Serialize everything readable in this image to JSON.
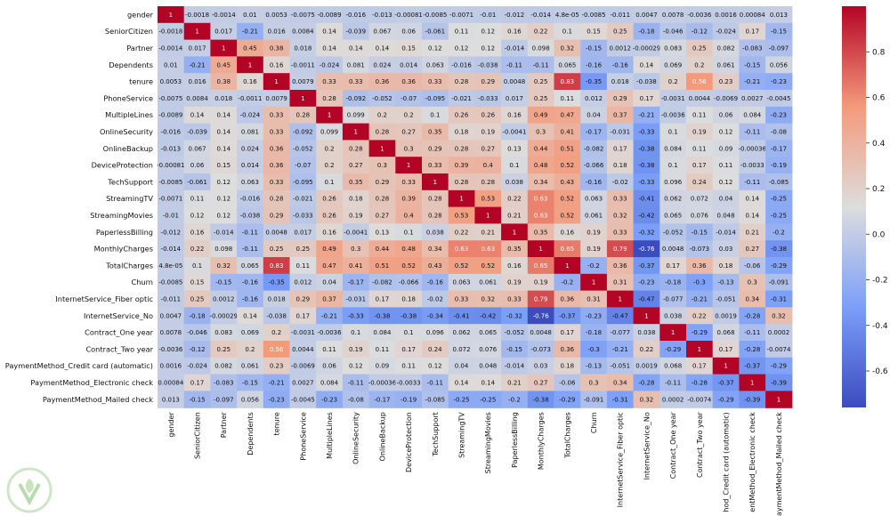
{
  "chart_data": {
    "type": "heatmap",
    "title": "",
    "xlabel": "",
    "ylabel": "",
    "labels": [
      "gender",
      "SeniorCitizen",
      "Partner",
      "Dependents",
      "tenure",
      "PhoneService",
      "MultipleLines",
      "OnlineSecurity",
      "OnlineBackup",
      "DeviceProtection",
      "TechSupport",
      "StreamingTV",
      "StreamingMovies",
      "PaperlessBilling",
      "MonthlyCharges",
      "TotalCharges",
      "Churn",
      "InternetService_Fiber optic",
      "InternetService_No",
      "Contract_One year",
      "Contract_Two year",
      "PaymentMethod_Credit card (automatic)",
      "PaymentMethod_Electronic check",
      "PaymentMethod_Mailed check"
    ],
    "x_tick_labels": [
      "gender",
      "SeniorCitizen",
      "Partner",
      "Dependents",
      "tenure",
      "PhoneService",
      "MultipleLines",
      "OnlineSecurity",
      "OnlineBackup",
      "DeviceProtection",
      "TechSupport",
      "StreamingTV",
      "StreamingMovies",
      "PaperlessBilling",
      "MonthlyCharges",
      "TotalCharges",
      "Churn",
      "InternetService_Fiber optic",
      "InternetService_No",
      "Contract_One year",
      "Contract_Two year",
      "hod_Credit card (automatic)",
      "entMethod_Electronic check",
      "aymentMethod_Mailed check"
    ],
    "cell_text": [
      [
        "1",
        "-0.0018",
        "-0.0014",
        "0.01",
        "0.0053",
        "-0.0075",
        "-0.0089",
        "-0.016",
        "-0.013",
        "-0.00081",
        "-0.0085",
        "-0.0071",
        "-0.01",
        "-0.012",
        "-0.014",
        "4.8e-05",
        "-0.0085",
        "-0.011",
        "0.0047",
        "0.0078",
        "-0.0036",
        "0.0016",
        "0.00084",
        "0.013"
      ],
      [
        "-0.0018",
        "1",
        "0.017",
        "-0.21",
        "0.016",
        "0.0084",
        "0.14",
        "-0.039",
        "0.067",
        "0.06",
        "-0.061",
        "0.11",
        "0.12",
        "0.16",
        "0.22",
        "0.1",
        "0.15",
        "0.25",
        "-0.18",
        "-0.046",
        "-0.12",
        "-0.024",
        "0.17",
        "-0.15"
      ],
      [
        "-0.0014",
        "0.017",
        "1",
        "0.45",
        "0.38",
        "0.018",
        "0.14",
        "0.14",
        "0.14",
        "0.15",
        "0.12",
        "0.12",
        "0.12",
        "-0.014",
        "0.098",
        "0.32",
        "-0.15",
        "0.0012",
        "-0.00029",
        "0.083",
        "0.25",
        "0.082",
        "-0.083",
        "-0.097"
      ],
      [
        "0.01",
        "-0.21",
        "0.45",
        "1",
        "0.16",
        "-0.0011",
        "-0.024",
        "0.081",
        "0.024",
        "0.014",
        "0.063",
        "-0.016",
        "-0.038",
        "-0.11",
        "-0.11",
        "0.065",
        "-0.16",
        "-0.16",
        "0.14",
        "0.069",
        "0.2",
        "0.061",
        "-0.15",
        "0.056"
      ],
      [
        "0.0053",
        "0.016",
        "0.38",
        "0.16",
        "1",
        "0.0079",
        "0.33",
        "0.33",
        "0.36",
        "0.36",
        "0.33",
        "0.28",
        "0.29",
        "0.0048",
        "0.25",
        "0.83",
        "-0.35",
        "0.018",
        "-0.038",
        "0.2",
        "0.56",
        "0.23",
        "-0.21",
        "-0.23"
      ],
      [
        "-0.0075",
        "0.0084",
        "0.018",
        "-0.0011",
        "0.0079",
        "1",
        "0.28",
        "-0.092",
        "-0.052",
        "-0.07",
        "-0.095",
        "-0.021",
        "-0.033",
        "0.017",
        "0.25",
        "0.11",
        "0.012",
        "0.29",
        "0.17",
        "-0.0031",
        "0.0044",
        "-0.0069",
        "0.0027",
        "-0.0045"
      ],
      [
        "-0.0089",
        "0.14",
        "0.14",
        "-0.024",
        "0.33",
        "0.28",
        "1",
        "0.099",
        "0.2",
        "0.2",
        "0.1",
        "0.26",
        "0.26",
        "0.16",
        "0.49",
        "0.47",
        "0.04",
        "0.37",
        "-0.21",
        "-0.0036",
        "0.11",
        "0.06",
        "0.084",
        "-0.23"
      ],
      [
        "-0.016",
        "-0.039",
        "0.14",
        "0.081",
        "0.33",
        "-0.092",
        "0.099",
        "1",
        "0.28",
        "0.27",
        "0.35",
        "0.18",
        "0.19",
        "-0.0041",
        "0.3",
        "0.41",
        "-0.17",
        "-0.031",
        "-0.33",
        "0.1",
        "0.19",
        "0.12",
        "-0.11",
        "-0.08"
      ],
      [
        "-0.013",
        "0.067",
        "0.14",
        "0.024",
        "0.36",
        "-0.052",
        "0.2",
        "0.28",
        "1",
        "0.3",
        "0.29",
        "0.28",
        "0.27",
        "0.13",
        "0.44",
        "0.51",
        "-0.082",
        "0.17",
        "-0.38",
        "0.084",
        "0.11",
        "0.09",
        "-0.00036",
        "-0.17"
      ],
      [
        "-0.00081",
        "0.06",
        "0.15",
        "0.014",
        "0.36",
        "-0.07",
        "0.2",
        "0.27",
        "0.3",
        "1",
        "0.33",
        "0.39",
        "0.4",
        "0.1",
        "0.48",
        "0.52",
        "-0.066",
        "0.18",
        "-0.38",
        "0.1",
        "0.17",
        "0.11",
        "-0.0033",
        "-0.19"
      ],
      [
        "-0.0085",
        "-0.061",
        "0.12",
        "0.063",
        "0.33",
        "-0.095",
        "0.1",
        "0.35",
        "0.29",
        "0.33",
        "1",
        "0.28",
        "0.28",
        "0.038",
        "0.34",
        "0.43",
        "-0.16",
        "-0.02",
        "-0.33",
        "0.096",
        "0.24",
        "0.12",
        "-0.11",
        "-0.085"
      ],
      [
        "-0.0071",
        "0.11",
        "0.12",
        "-0.016",
        "0.28",
        "-0.021",
        "0.26",
        "0.18",
        "0.28",
        "0.39",
        "0.28",
        "1",
        "0.53",
        "0.22",
        "0.63",
        "0.52",
        "0.063",
        "0.33",
        "-0.41",
        "0.062",
        "0.072",
        "0.04",
        "0.14",
        "-0.25"
      ],
      [
        "-0.01",
        "0.12",
        "0.12",
        "-0.038",
        "0.29",
        "-0.033",
        "0.26",
        "0.19",
        "0.27",
        "0.4",
        "0.28",
        "0.53",
        "1",
        "0.21",
        "0.63",
        "0.52",
        "0.061",
        "0.32",
        "-0.42",
        "0.065",
        "0.076",
        "0.048",
        "0.14",
        "-0.25"
      ],
      [
        "-0.012",
        "0.16",
        "-0.014",
        "-0.11",
        "0.0048",
        "0.017",
        "0.16",
        "-0.0041",
        "0.13",
        "0.1",
        "0.038",
        "0.22",
        "0.21",
        "1",
        "0.35",
        "0.16",
        "0.19",
        "0.33",
        "-0.32",
        "-0.052",
        "-0.15",
        "-0.014",
        "0.21",
        "-0.2"
      ],
      [
        "-0.014",
        "0.22",
        "0.098",
        "-0.11",
        "0.25",
        "0.25",
        "0.49",
        "0.3",
        "0.44",
        "0.48",
        "0.34",
        "0.63",
        "0.63",
        "0.35",
        "1",
        "0.65",
        "0.19",
        "0.79",
        "-0.76",
        "0.0048",
        "-0.073",
        "0.03",
        "0.27",
        "-0.38"
      ],
      [
        "4.8e-05",
        "0.1",
        "0.32",
        "0.065",
        "0.83",
        "0.11",
        "0.47",
        "0.41",
        "0.51",
        "0.52",
        "0.43",
        "0.52",
        "0.52",
        "0.16",
        "0.65",
        "1",
        "-0.2",
        "0.36",
        "-0.37",
        "0.17",
        "0.36",
        "0.18",
        "-0.06",
        "-0.29"
      ],
      [
        "-0.0085",
        "0.15",
        "-0.15",
        "-0.16",
        "-0.35",
        "0.012",
        "0.04",
        "-0.17",
        "-0.082",
        "-0.066",
        "-0.16",
        "0.063",
        "0.061",
        "0.19",
        "0.19",
        "-0.2",
        "1",
        "0.31",
        "-0.23",
        "-0.18",
        "-0.3",
        "-0.13",
        "0.3",
        "-0.091"
      ],
      [
        "-0.011",
        "0.25",
        "0.0012",
        "-0.16",
        "0.018",
        "0.29",
        "0.37",
        "-0.031",
        "0.17",
        "0.18",
        "-0.02",
        "0.33",
        "0.32",
        "0.33",
        "0.79",
        "0.36",
        "0.31",
        "1",
        "-0.47",
        "-0.077",
        "-0.21",
        "-0.051",
        "0.34",
        "-0.31"
      ],
      [
        "0.0047",
        "-0.18",
        "-0.00029",
        "0.14",
        "-0.038",
        "0.17",
        "-0.21",
        "-0.33",
        "-0.38",
        "-0.38",
        "-0.34",
        "-0.41",
        "-0.42",
        "-0.32",
        "-0.76",
        "-0.37",
        "-0.23",
        "-0.47",
        "1",
        "0.038",
        "0.22",
        "0.0019",
        "-0.28",
        "0.32"
      ],
      [
        "0.0078",
        "-0.046",
        "0.083",
        "0.069",
        "0.2",
        "-0.0031",
        "-0.0036",
        "0.1",
        "0.084",
        "0.1",
        "0.096",
        "0.062",
        "0.065",
        "-0.052",
        "0.0048",
        "0.17",
        "-0.18",
        "-0.077",
        "0.038",
        "1",
        "-0.29",
        "0.068",
        "-0.11",
        "0.0002"
      ],
      [
        "-0.0036",
        "-0.12",
        "0.25",
        "0.2",
        "0.56",
        "0.0044",
        "0.11",
        "0.19",
        "0.11",
        "0.17",
        "0.24",
        "0.072",
        "0.076",
        "-0.15",
        "-0.073",
        "0.36",
        "-0.3",
        "-0.21",
        "0.22",
        "-0.29",
        "1",
        "0.17",
        "-0.28",
        "-0.0074"
      ],
      [
        "0.0016",
        "-0.024",
        "0.082",
        "0.061",
        "0.23",
        "-0.0069",
        "0.06",
        "0.12",
        "0.09",
        "0.11",
        "0.12",
        "0.04",
        "0.048",
        "-0.014",
        "0.03",
        "0.18",
        "-0.13",
        "-0.051",
        "0.0019",
        "0.068",
        "0.17",
        "1",
        "-0.37",
        "-0.29"
      ],
      [
        "0.00084",
        "0.17",
        "-0.083",
        "-0.15",
        "-0.21",
        "0.0027",
        "0.084",
        "-0.11",
        "-0.00036",
        "-0.0033",
        "-0.11",
        "0.14",
        "0.14",
        "0.21",
        "0.27",
        "-0.06",
        "0.3",
        "0.34",
        "-0.28",
        "-0.11",
        "-0.28",
        "-0.37",
        "1",
        "-0.39"
      ],
      [
        "0.013",
        "-0.15",
        "-0.097",
        "0.056",
        "-0.23",
        "-0.0045",
        "-0.23",
        "-0.08",
        "-0.17",
        "-0.19",
        "-0.085",
        "-0.25",
        "-0.25",
        "-0.2",
        "-0.38",
        "-0.29",
        "-0.091",
        "-0.31",
        "0.32",
        "0.0002",
        "-0.0074",
        "-0.29",
        "-0.39",
        "1"
      ]
    ],
    "colorbar": {
      "ticks": [
        "0.8",
        "0.6",
        "0.4",
        "0.2",
        "0.0",
        "-0.2",
        "-0.4",
        "-0.6"
      ],
      "range": [
        -0.76,
        1
      ],
      "colormap": "coolwarm"
    }
  }
}
